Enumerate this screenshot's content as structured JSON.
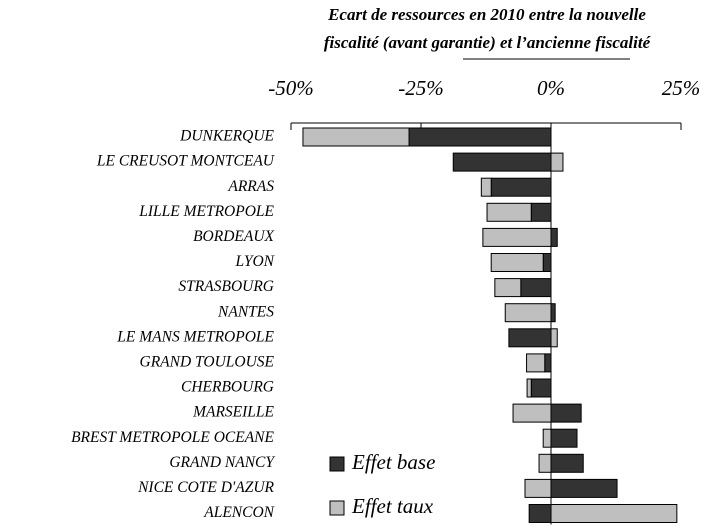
{
  "chart_data": {
    "type": "bar",
    "orientation": "horizontal",
    "stacked": true,
    "title": [
      "Ecart de ressources en 2010 entre la nouvelle",
      "fiscalité (avant garantie) et l’ancienne fiscalité"
    ],
    "categories": [
      "DUNKERQUE",
      "LE CREUSOT MONTCEAU",
      "ARRAS",
      "LILLE METROPOLE",
      "BORDEAUX",
      "LYON",
      "STRASBOURG",
      "NANTES",
      "LE MANS METROPOLE",
      "GRAND TOULOUSE",
      "CHERBOURG",
      "MARSEILLE",
      "BREST METROPOLE OCEANE",
      "GRAND NANCY",
      "NICE COTE D'AZUR",
      "ALENCON"
    ],
    "series": [
      {
        "name": "Effet base",
        "color": "#333333",
        "values": [
          -27.3,
          -18.8,
          -11.5,
          -3.8,
          1.2,
          -1.5,
          -5.8,
          0.8,
          -8.1,
          -1.2,
          -3.8,
          5.8,
          5.0,
          6.2,
          12.7,
          -4.2
        ]
      },
      {
        "name": "Effet taux",
        "color": "#bfbfbf",
        "values": [
          -20.4,
          2.3,
          -1.9,
          -8.5,
          -13.1,
          -10.0,
          -5.0,
          -8.8,
          1.2,
          -3.5,
          -0.8,
          -7.3,
          -1.5,
          -2.3,
          -5.0,
          24.2
        ]
      }
    ],
    "xlim": [
      -50,
      25
    ],
    "xticks": [
      {
        "value": -50,
        "label": "-50%"
      },
      {
        "value": -25,
        "label": "-25%"
      },
      {
        "value": 0,
        "label": "0%"
      },
      {
        "value": 25,
        "label": "25%"
      }
    ],
    "legend": "bottom"
  }
}
